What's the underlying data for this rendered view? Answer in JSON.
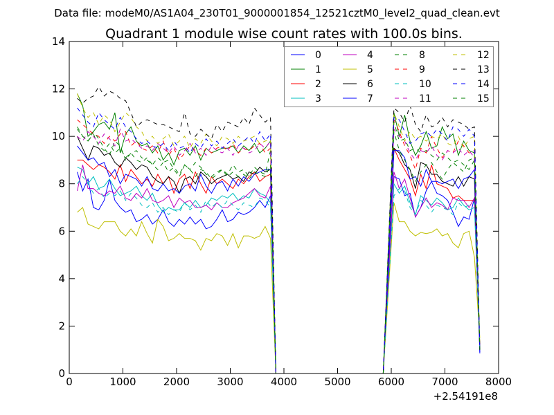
{
  "chart_data": {
    "type": "line",
    "suptitle": "Data file: modeM0/AS1A04_230T01_9000001854_12521cztM0_level2_quad_clean.evt",
    "title": "Quadrant 1 module wise count rates with 100.0s bins.",
    "xlabel": "",
    "ylabel": "",
    "x_offset_label": "+2.54191e8",
    "xlim": [
      0,
      8000
    ],
    "ylim": [
      0,
      14
    ],
    "xticks": [
      0,
      1000,
      2000,
      3000,
      4000,
      5000,
      6000,
      7000,
      8000
    ],
    "xtick_labels": [
      "0",
      "1000",
      "2000",
      "3000",
      "4000",
      "5000",
      "6000",
      "7000",
      "8000"
    ],
    "yticks": [
      0,
      2,
      4,
      6,
      8,
      10,
      12,
      14
    ],
    "ytick_labels": [
      "0",
      "2",
      "4",
      "6",
      "8",
      "10",
      "12",
      "14"
    ],
    "grid": false,
    "legend_placement": "top-right",
    "legend_columns": 4,
    "x": [
      150,
      250,
      350,
      450,
      550,
      650,
      750,
      850,
      950,
      1050,
      1150,
      1250,
      1350,
      1450,
      1550,
      1650,
      1750,
      1850,
      1950,
      2050,
      2150,
      2250,
      2350,
      2450,
      2550,
      2650,
      2750,
      2850,
      2950,
      3050,
      3150,
      3250,
      3350,
      3450,
      3550,
      3650,
      3750,
      3850,
      5850,
      6050,
      6150,
      6250,
      6350,
      6450,
      6550,
      6650,
      6750,
      6850,
      6950,
      7050,
      7150,
      7250,
      7350,
      7450,
      7550,
      7650
    ],
    "series": [
      {
        "name": "0",
        "color": "#0000ff",
        "style": "solid",
        "values": [
          8.5,
          7.7,
          8.2,
          7.0,
          6.9,
          7.3,
          8.2,
          7.3,
          7.0,
          6.8,
          6.9,
          6.4,
          6.5,
          6.7,
          6.3,
          6.5,
          6.9,
          6.4,
          6.2,
          6.5,
          6.3,
          6.6,
          6.3,
          6.5,
          6.1,
          6.2,
          6.5,
          6.9,
          6.4,
          6.5,
          6.8,
          6.7,
          6.8,
          7.0,
          7.3,
          7.0,
          7.5,
          0,
          0,
          8.3,
          8.2,
          7.5,
          7.6,
          6.6,
          7.0,
          7.7,
          8.1,
          7.6,
          7.5,
          7.3,
          6.8,
          6.2,
          6.6,
          6.5,
          7.4,
          0.85
        ]
      },
      {
        "name": "1",
        "color": "#008000",
        "style": "solid",
        "values": [
          11.8,
          11.3,
          10.0,
          10.2,
          10.5,
          10.6,
          10.3,
          11.0,
          9.3,
          10.1,
          10.4,
          9.8,
          9.6,
          9.7,
          9.3,
          9.6,
          9.0,
          9.3,
          8.8,
          9.4,
          9.5,
          9.2,
          9.6,
          9.0,
          9.5,
          9.3,
          9.4,
          9.5,
          9.5,
          9.6,
          9.3,
          9.6,
          9.4,
          9.7,
          9.3,
          9.5,
          9.8,
          0,
          0,
          11.0,
          10.0,
          10.9,
          9.8,
          9.2,
          9.6,
          10.2,
          9.5,
          9.6,
          10.4,
          9.9,
          10.1,
          9.2,
          9.8,
          9.4,
          9.3,
          1.2
        ]
      },
      {
        "name": "2",
        "color": "#ff0000",
        "style": "solid",
        "values": [
          9.0,
          9.0,
          8.8,
          8.6,
          8.8,
          8.7,
          8.5,
          8.2,
          8.8,
          8.1,
          8.6,
          8.3,
          8.0,
          8.2,
          7.9,
          8.4,
          8.0,
          8.3,
          7.6,
          8.2,
          8.4,
          7.8,
          8.5,
          8.0,
          7.6,
          8.3,
          8.0,
          8.2,
          8.0,
          7.8,
          8.2,
          8.0,
          8.3,
          8.5,
          8.1,
          8.3,
          8.4,
          0,
          0,
          9.5,
          9.0,
          8.6,
          8.2,
          7.5,
          8.4,
          7.8,
          8.8,
          8.0,
          7.9,
          7.8,
          7.4,
          7.5,
          7.3,
          7.3,
          7.3,
          1.0
        ]
      },
      {
        "name": "3",
        "color": "#00bfbf",
        "style": "solid",
        "values": [
          8.7,
          8.6,
          8.0,
          8.3,
          7.8,
          7.9,
          8.2,
          7.8,
          7.5,
          7.6,
          7.7,
          7.9,
          7.5,
          7.3,
          7.6,
          7.1,
          6.8,
          7.0,
          6.9,
          6.9,
          7.2,
          7.0,
          7.3,
          7.0,
          7.1,
          7.4,
          7.3,
          7.5,
          7.4,
          7.6,
          7.3,
          7.5,
          7.4,
          7.8,
          7.6,
          7.5,
          7.2,
          0,
          0,
          8.0,
          7.6,
          7.9,
          7.2,
          6.7,
          7.5,
          7.3,
          7.1,
          7.4,
          7.2,
          6.9,
          7.0,
          7.4,
          7.1,
          6.9,
          7.0,
          1.1
        ]
      },
      {
        "name": "4",
        "color": "#bf00bf",
        "style": "solid",
        "values": [
          7.7,
          8.8,
          7.8,
          7.8,
          7.6,
          7.5,
          7.7,
          7.6,
          7.9,
          7.4,
          7.3,
          7.6,
          7.4,
          7.8,
          7.3,
          7.2,
          7.3,
          7.5,
          7.0,
          7.4,
          7.2,
          7.3,
          7.0,
          7.0,
          7.1,
          6.9,
          7.2,
          7.0,
          7.0,
          7.2,
          7.3,
          7.4,
          7.6,
          7.8,
          7.5,
          7.4,
          7.9,
          0,
          0,
          8.5,
          7.8,
          8.2,
          7.4,
          6.6,
          7.0,
          7.4,
          7.0,
          7.2,
          7.1,
          6.9,
          7.4,
          7.3,
          7.3,
          7.0,
          7.4,
          1.0
        ]
      },
      {
        "name": "5",
        "color": "#bfbf00",
        "style": "solid",
        "values": [
          6.8,
          7.0,
          6.3,
          6.2,
          6.1,
          6.4,
          6.4,
          6.4,
          6.0,
          5.8,
          6.1,
          5.8,
          6.4,
          5.9,
          5.5,
          6.5,
          6.2,
          5.6,
          5.7,
          5.9,
          5.7,
          5.7,
          5.6,
          5.2,
          5.7,
          5.6,
          5.9,
          5.8,
          5.4,
          5.9,
          5.3,
          5.8,
          5.8,
          5.7,
          5.8,
          6.2,
          5.7,
          0,
          0,
          7.2,
          6.4,
          6.4,
          6.0,
          5.8,
          5.95,
          5.9,
          5.95,
          6.1,
          5.8,
          5.9,
          5.5,
          5.3,
          5.9,
          6.0,
          4.9,
          1.5
        ]
      },
      {
        "name": "6",
        "color": "#000000",
        "style": "solid",
        "values": [
          10.0,
          9.5,
          9.0,
          9.6,
          9.5,
          9.2,
          9.3,
          8.9,
          8.7,
          9.1,
          8.9,
          8.6,
          8.8,
          8.7,
          8.3,
          8.1,
          8.0,
          8.3,
          8.1,
          7.6,
          8.2,
          8.3,
          8.0,
          8.5,
          8.3,
          8.0,
          8.2,
          8.3,
          8.4,
          8.2,
          8.3,
          8.1,
          8.5,
          8.4,
          8.7,
          8.5,
          8.6,
          0,
          0,
          9.5,
          9.3,
          8.8,
          8.6,
          7.8,
          8.9,
          8.8,
          8.4,
          8.4,
          8.1,
          8.0,
          7.9,
          8.3,
          7.9,
          8.3,
          8.2,
          1.0
        ]
      },
      {
        "name": "7",
        "color": "#0000ff",
        "style": "solid",
        "values": [
          9.6,
          9.3,
          9.0,
          9.1,
          8.8,
          8.9,
          8.3,
          8.6,
          8.0,
          8.4,
          8.3,
          8.2,
          7.9,
          8.3,
          7.8,
          7.7,
          8.0,
          7.7,
          7.8,
          7.6,
          7.9,
          8.0,
          7.7,
          8.4,
          7.9,
          7.6,
          8.0,
          8.1,
          7.7,
          8.2,
          7.9,
          8.3,
          8.1,
          8.4,
          8.5,
          8.6,
          8.6,
          0,
          0,
          9.4,
          9.4,
          9.1,
          8.2,
          8.3,
          7.9,
          8.6,
          8.1,
          8.1,
          8.0,
          8.1,
          8.2,
          7.8,
          8.2,
          8.3,
          8.6,
          0.9
        ]
      },
      {
        "name": "8",
        "color": "#008000",
        "style": "dashed",
        "values": [
          10.4,
          10.0,
          9.8,
          10.2,
          9.9,
          9.5,
          9.2,
          9.8,
          9.6,
          9.0,
          9.3,
          9.4,
          9.1,
          9.0,
          8.8,
          9.1,
          8.9,
          9.0,
          8.6,
          8.3,
          8.8,
          8.6,
          8.9,
          8.7,
          8.4,
          8.3,
          8.5,
          8.6,
          8.4,
          8.8,
          8.5,
          8.6,
          8.3,
          8.7,
          8.5,
          8.4,
          9.4,
          0,
          0,
          10.2,
          9.4,
          9.0,
          8.6,
          8.1,
          8.5,
          8.8,
          8.9,
          8.5,
          8.2,
          8.6,
          8.9,
          8.7,
          8.5,
          9.0,
          9.1,
          1.0
        ]
      },
      {
        "name": "9",
        "color": "#ff0000",
        "style": "dashed",
        "values": [
          10.7,
          10.5,
          10.3,
          10.1,
          10.0,
          9.7,
          10.0,
          9.8,
          10.1,
          10.2,
          9.6,
          9.8,
          9.5,
          9.4,
          9.6,
          9.3,
          9.8,
          9.2,
          9.5,
          9.0,
          9.3,
          9.6,
          9.4,
          9.2,
          9.5,
          9.3,
          9.5,
          9.6,
          9.4,
          9.7,
          9.3,
          9.5,
          9.4,
          9.6,
          9.7,
          9.3,
          9.5,
          0,
          0,
          10.7,
          10.2,
          9.6,
          9.2,
          8.6,
          9.5,
          9.3,
          10.0,
          9.5,
          9.1,
          9.4,
          9.3,
          9.8,
          9.6,
          9.3,
          9.4,
          1.1
        ]
      },
      {
        "name": "10",
        "color": "#00bfbf",
        "style": "dashed",
        "values": [
          8.0,
          8.3,
          8.0,
          7.6,
          7.8,
          7.4,
          7.6,
          7.5,
          7.7,
          7.3,
          7.6,
          7.4,
          7.1,
          7.0,
          7.2,
          6.8,
          7.0,
          6.7,
          6.9,
          6.8,
          7.2,
          6.9,
          7.1,
          6.8,
          7.3,
          7.0,
          7.2,
          7.0,
          7.3,
          7.1,
          6.9,
          7.2,
          7.1,
          7.0,
          7.4,
          7.3,
          7.0,
          0,
          0,
          7.5,
          7.8,
          7.7,
          7.0,
          6.7,
          7.3,
          7.1,
          6.8,
          7.1,
          7.0,
          6.9,
          6.7,
          7.2,
          7.0,
          7.1,
          7.2,
          1.0
        ]
      },
      {
        "name": "11",
        "color": "#bf00bf",
        "style": "dashed",
        "values": [
          10.0,
          9.8,
          10.2,
          10.0,
          9.7,
          10.1,
          9.9,
          9.6,
          10.3,
          9.8,
          9.9,
          9.7,
          9.5,
          9.6,
          9.4,
          9.7,
          9.5,
          9.3,
          9.6,
          9.2,
          9.4,
          9.7,
          9.3,
          9.5,
          9.2,
          9.6,
          9.4,
          9.3,
          9.5,
          9.2,
          9.6,
          9.5,
          9.3,
          9.4,
          9.7,
          9.5,
          9.8,
          0,
          0,
          10.3,
          10.0,
          9.8,
          9.3,
          9.0,
          9.4,
          9.3,
          9.6,
          9.2,
          9.0,
          9.4,
          9.3,
          9.5,
          9.2,
          9.4,
          9.1,
          1.0
        ]
      },
      {
        "name": "12",
        "color": "#bfbf00",
        "style": "dashed",
        "values": [
          11.8,
          11.2,
          10.8,
          11.0,
          10.5,
          10.9,
          10.7,
          10.2,
          10.6,
          11.0,
          10.8,
          10.4,
          10.2,
          9.8,
          10.0,
          9.7,
          9.9,
          10.1,
          9.6,
          9.8,
          10.0,
          9.5,
          9.9,
          9.7,
          10.1,
          9.8,
          9.6,
          10.0,
          9.9,
          9.7,
          10.0,
          9.8,
          9.9,
          10.0,
          9.7,
          9.8,
          9.9,
          0,
          0,
          11.0,
          10.4,
          9.8,
          10.2,
          9.9,
          10.0,
          9.8,
          10.0,
          9.9,
          10.1,
          9.7,
          9.6,
          10.0,
          9.5,
          9.9,
          10.0,
          1.2
        ]
      },
      {
        "name": "13",
        "color": "#000000",
        "style": "dashed",
        "values": [
          11.6,
          11.4,
          11.6,
          11.7,
          12.1,
          11.7,
          11.9,
          11.8,
          11.6,
          11.5,
          11.0,
          10.4,
          10.6,
          10.7,
          10.6,
          10.5,
          10.5,
          10.4,
          10.3,
          10.2,
          11.0,
          10.1,
          10.0,
          10.3,
          10.1,
          9.9,
          10.5,
          10.2,
          10.6,
          10.5,
          10.4,
          10.8,
          10.5,
          11.2,
          10.9,
          10.6,
          10.8,
          0,
          0,
          11.2,
          11.0,
          10.6,
          11.3,
          10.5,
          10.2,
          10.9,
          10.4,
          10.5,
          10.8,
          10.4,
          10.7,
          10.6,
          10.5,
          10.3,
          10.4,
          1.0
        ]
      },
      {
        "name": "14",
        "color": "#0000ff",
        "style": "dashed",
        "values": [
          11.2,
          10.9,
          10.6,
          10.4,
          11.0,
          10.7,
          10.5,
          10.3,
          10.8,
          10.4,
          10.2,
          9.9,
          9.7,
          9.8,
          9.6,
          9.5,
          9.7,
          9.4,
          9.8,
          9.5,
          9.6,
          9.3,
          9.7,
          9.5,
          9.9,
          9.6,
          9.8,
          9.5,
          9.7,
          9.9,
          9.6,
          9.8,
          10.0,
          9.7,
          10.2,
          9.8,
          10.1,
          0,
          0,
          10.8,
          10.7,
          10.2,
          9.7,
          9.8,
          10.1,
          10.2,
          10.0,
          10.3,
          10.1,
          9.8,
          10.4,
          10.3,
          10.0,
          10.3,
          10.0,
          1.0
        ]
      },
      {
        "name": "15",
        "color": "#008000",
        "style": "dashed",
        "values": [
          10.3,
          10.0,
          9.8,
          10.1,
          9.6,
          9.4,
          9.7,
          9.3,
          9.5,
          9.1,
          9.3,
          9.0,
          8.9,
          9.1,
          8.8,
          8.6,
          8.9,
          8.5,
          8.7,
          8.4,
          8.8,
          8.6,
          8.3,
          8.6,
          8.5,
          8.2,
          8.4,
          8.6,
          8.3,
          8.5,
          8.3,
          8.4,
          8.2,
          8.5,
          8.4,
          8.3,
          8.8,
          0,
          0,
          10.6,
          9.8,
          9.9,
          9.4,
          9.5,
          9.3,
          9.4,
          9.2,
          9.0,
          9.3,
          9.1,
          8.9,
          9.0,
          8.8,
          8.6,
          9.0,
          1.0
        ]
      }
    ]
  }
}
